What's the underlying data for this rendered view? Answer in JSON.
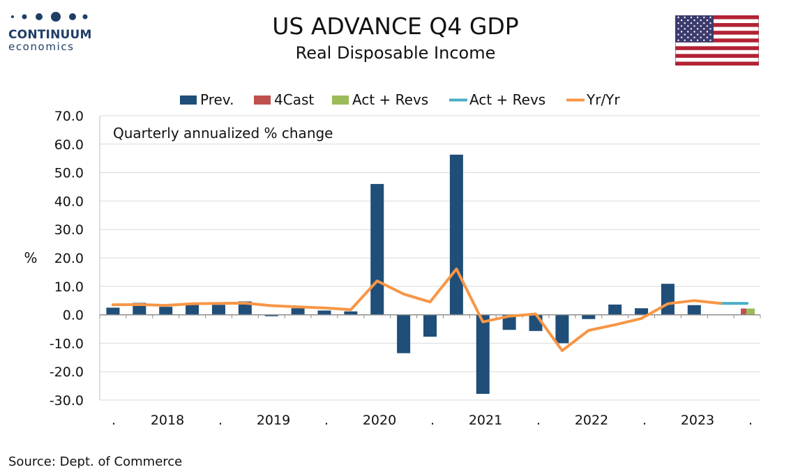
{
  "header": {
    "title": "US ADVANCE Q4  GDP",
    "subtitle": "Real Disposable Income"
  },
  "logo": {
    "name": "CONTINUUM",
    "sub": "economics",
    "color": "#1f3e66"
  },
  "flag_icon": "us-flag-icon",
  "source": "Source: Dept. of Commerce",
  "chart_data": {
    "type": "bar",
    "annotation": "Quarterly annualized % change",
    "ylabel": "%",
    "ylim": [
      -30,
      70
    ],
    "yticks": [
      -30,
      -20,
      -10,
      0,
      10,
      20,
      30,
      40,
      50,
      60,
      70
    ],
    "ytick_labels": [
      "-30.0",
      "-20.0",
      "-10.0",
      "0.0",
      "10.0",
      "20.0",
      "30.0",
      "40.0",
      "50.0",
      "60.0",
      "70.0"
    ],
    "grid": true,
    "legend_position": "top",
    "x_labels": [
      ".",
      "2018",
      ".",
      "2019",
      ".",
      "2020",
      ".",
      "2021",
      ".",
      "2022",
      ".",
      "2023",
      "."
    ],
    "categories": [
      "2017Q4",
      "2018Q1",
      "2018Q2",
      "2018Q3",
      "2018Q4",
      "2019Q1",
      "2019Q2",
      "2019Q3",
      "2019Q4",
      "2020Q1",
      "2020Q2",
      "2020Q3",
      "2020Q4",
      "2021Q1",
      "2021Q2",
      "2021Q3",
      "2021Q4",
      "2022Q1",
      "2022Q2",
      "2022Q3",
      "2022Q4",
      "2023Q1",
      "2023Q2",
      "2023Q3",
      "2023Q4"
    ],
    "series": [
      {
        "name": "Prev.",
        "kind": "bar",
        "color": "#1f4e79",
        "values": [
          2.5,
          4.2,
          2.8,
          4.0,
          3.5,
          4.7,
          -0.5,
          2.3,
          1.5,
          1.2,
          46.0,
          -13.5,
          -7.7,
          56.3,
          -27.8,
          -5.3,
          -5.7,
          -10.0,
          -1.5,
          3.6,
          2.3,
          10.9,
          3.4,
          0,
          0
        ]
      },
      {
        "name": "4Cast",
        "kind": "bar",
        "color": "#c0504d",
        "values": [
          0,
          0,
          0,
          0,
          0,
          0,
          0,
          0,
          0,
          0,
          0,
          0,
          0,
          0,
          0,
          0,
          0,
          0,
          0,
          0,
          0,
          0,
          0,
          0,
          2.2
        ]
      },
      {
        "name": "Act + Revs",
        "kind": "bar",
        "color": "#9bbb59",
        "values": [
          0,
          0,
          0,
          0,
          0,
          0,
          0,
          0,
          0,
          0,
          0,
          0,
          0,
          0,
          0,
          0,
          0,
          0,
          0,
          0,
          0,
          0,
          0,
          0,
          2.2
        ]
      },
      {
        "name": "Act + Revs",
        "kind": "line",
        "color": "#4bacc6",
        "values": [
          null,
          null,
          null,
          null,
          null,
          null,
          null,
          null,
          null,
          null,
          null,
          null,
          null,
          null,
          null,
          null,
          null,
          null,
          null,
          null,
          null,
          null,
          null,
          4.0,
          4.0
        ]
      },
      {
        "name": "Yr/Yr",
        "kind": "line",
        "color": "#f79646",
        "values": [
          3.5,
          3.6,
          3.3,
          3.9,
          4.0,
          4.1,
          3.2,
          2.8,
          2.4,
          1.8,
          11.9,
          7.3,
          4.5,
          16.1,
          -2.5,
          -0.5,
          0.3,
          -12.6,
          -5.5,
          -3.5,
          -1.3,
          3.9,
          5.0,
          4.0,
          null
        ]
      }
    ]
  }
}
